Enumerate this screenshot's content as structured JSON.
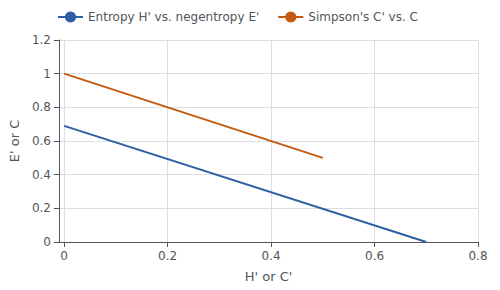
{
  "chart_data": {
    "type": "line",
    "series": [
      {
        "name": "Entropy H' vs. negentropy E'",
        "color": "#2e5fa3",
        "x": [
          0,
          0.7
        ],
        "values": [
          0.69,
          0
        ]
      },
      {
        "name": "Simpson's C' vs. C",
        "color": "#c55a11",
        "x": [
          0,
          0.5
        ],
        "values": [
          1.0,
          0.5
        ]
      }
    ],
    "xlabel": "H' or C'",
    "ylabel": "E' or C",
    "xlim": [
      -0.01,
      0.8
    ],
    "ylim": [
      0,
      1.2
    ],
    "xticks": [
      0,
      0.2,
      0.4,
      0.6,
      0.8
    ],
    "yticks": [
      0,
      0.2,
      0.4,
      0.6,
      0.8,
      1.0,
      1.2
    ],
    "grid": true,
    "legend": "upper left"
  }
}
